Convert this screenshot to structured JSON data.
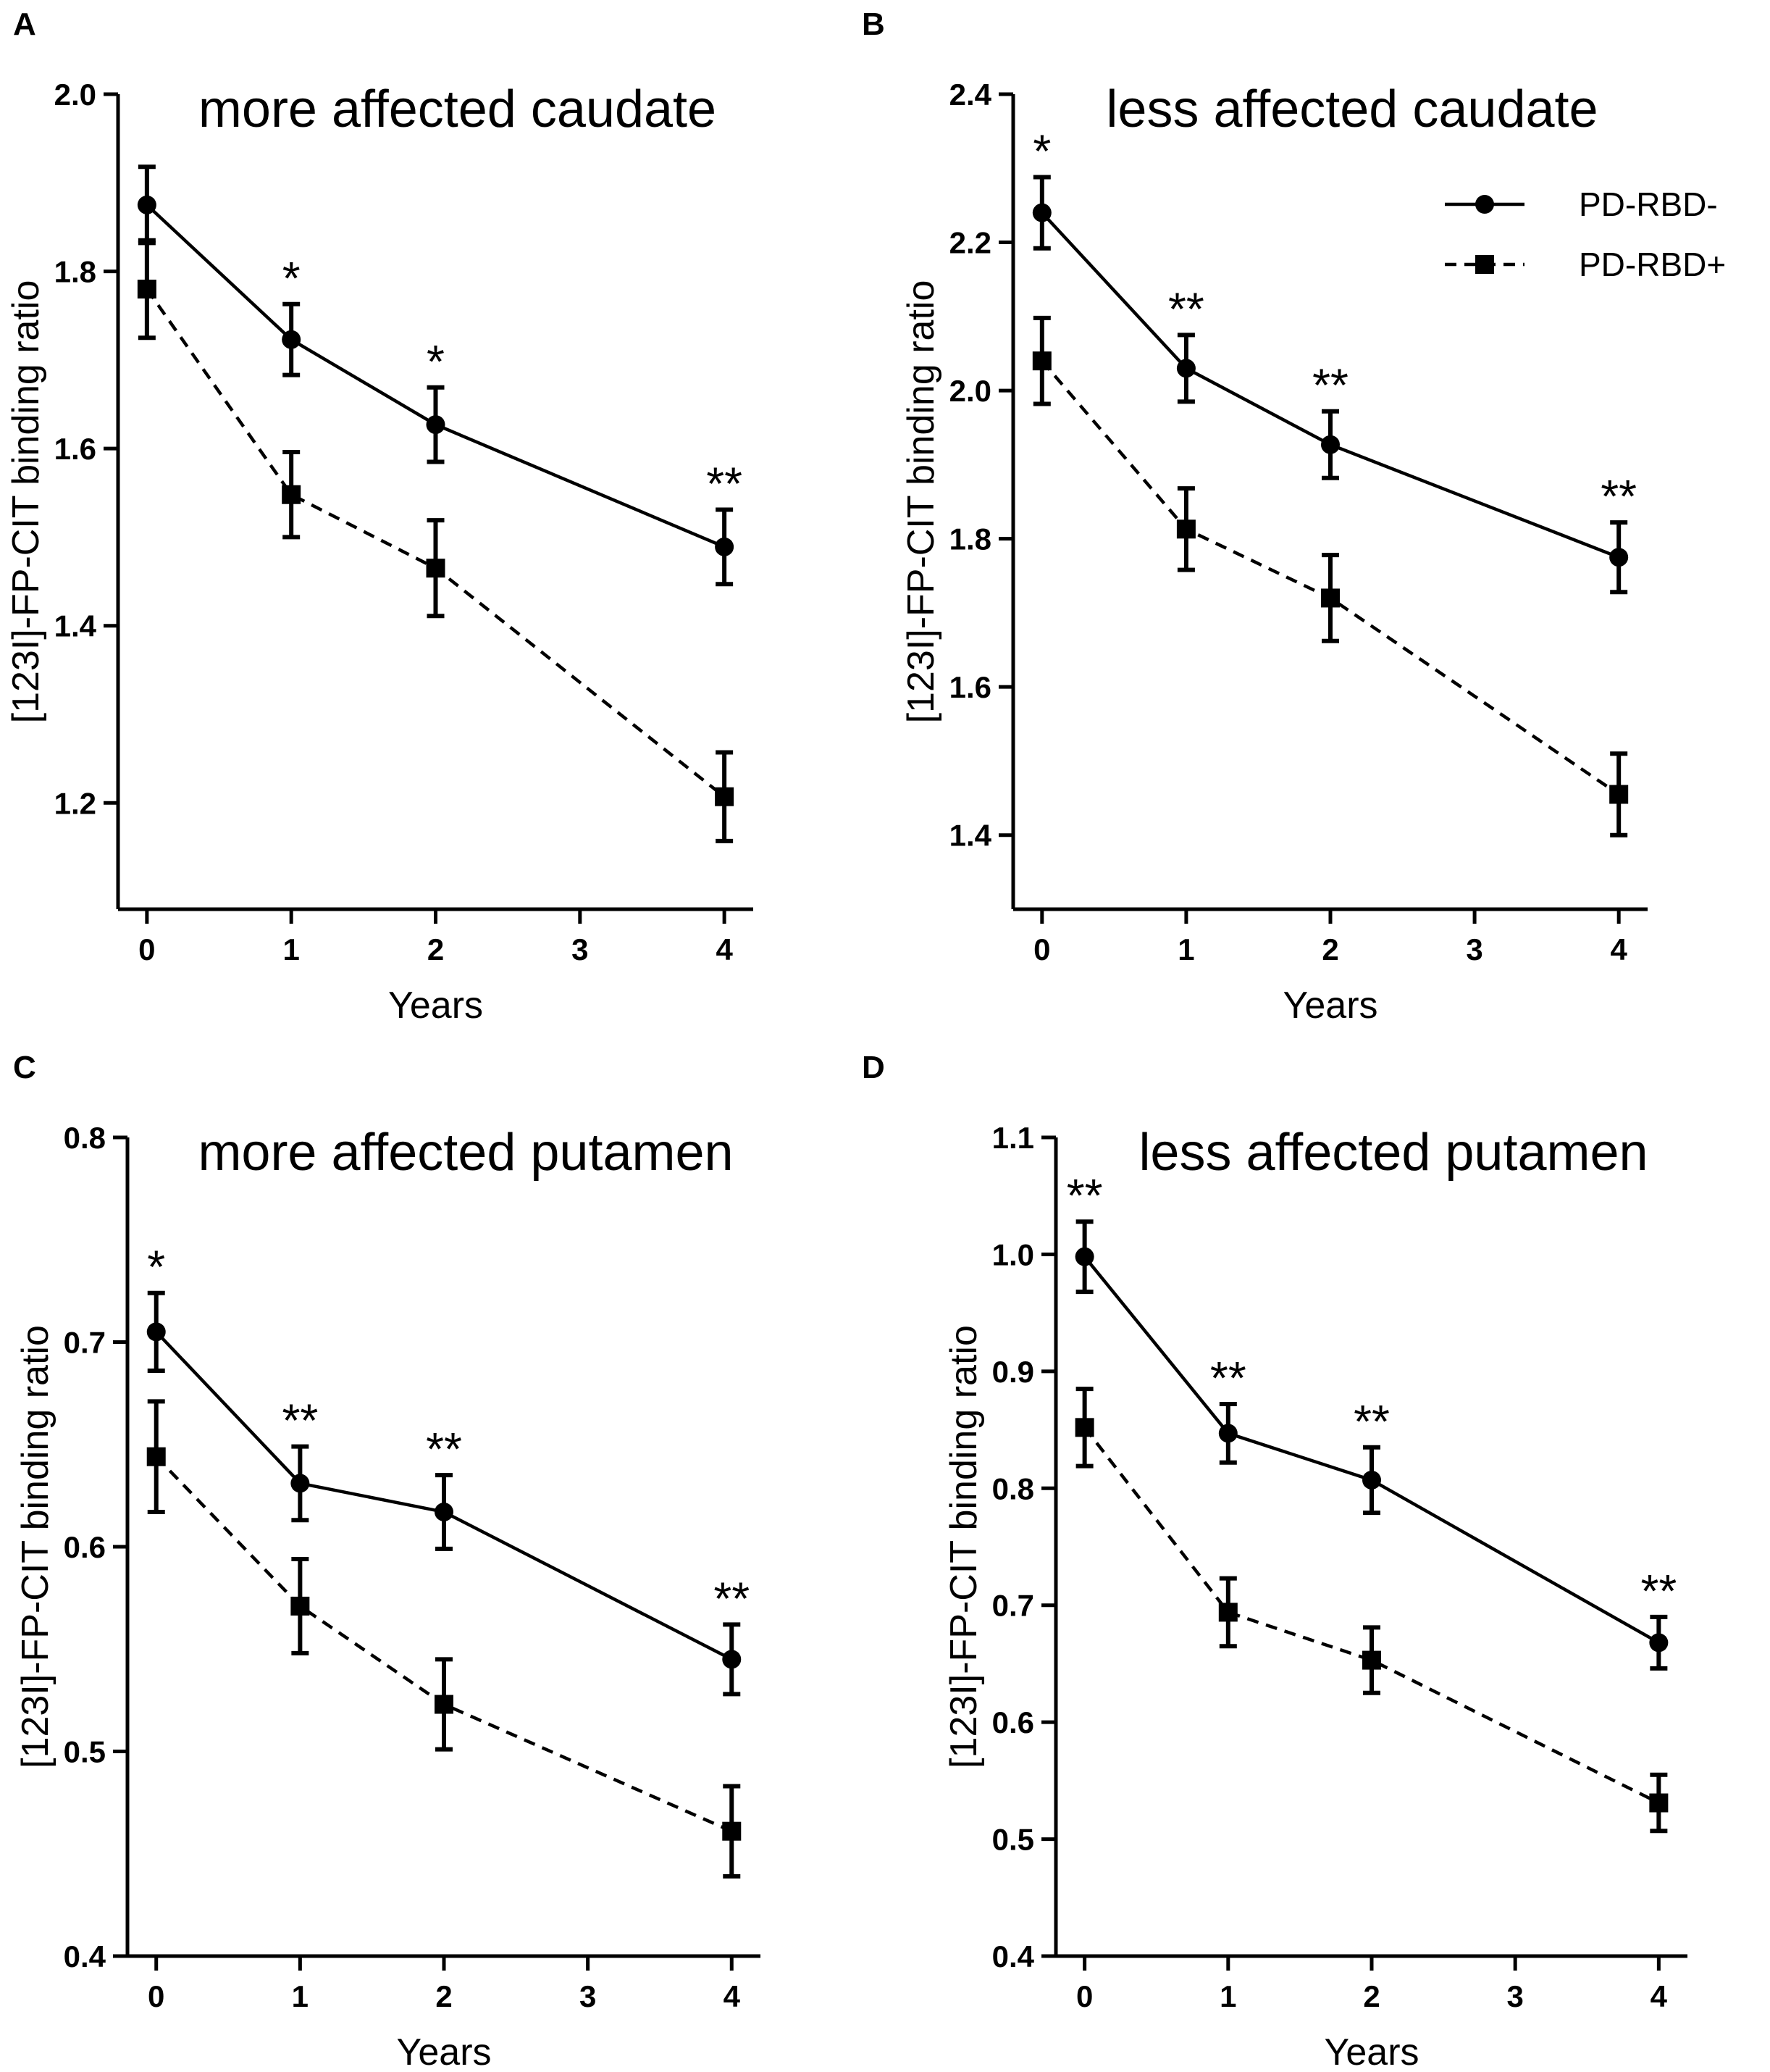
{
  "legend": {
    "series": [
      {
        "name": "PD-RBD-",
        "marker": "circle",
        "line": "solid"
      },
      {
        "name": "PD-RBD+",
        "marker": "square",
        "line": "dashed"
      }
    ]
  },
  "chart_data": [
    {
      "panel": "A",
      "type": "line",
      "title": "more affected caudate",
      "xlabel": "Years",
      "ylabel": "[123I]-FP-CIT binding ratio",
      "x": [
        0,
        1,
        2,
        4
      ],
      "xticks": [
        "0",
        "1",
        "2",
        "3",
        "4"
      ],
      "xlim": [
        -0.2,
        4.2
      ],
      "ylim": [
        1.08,
        2.0
      ],
      "yticks": [
        "1.2",
        "1.4",
        "1.6",
        "1.8",
        "2.0"
      ],
      "ytick_values": [
        1.2,
        1.4,
        1.6,
        1.8,
        2.0
      ],
      "significance": [
        "",
        "*",
        "*",
        "**"
      ],
      "series": [
        {
          "name": "PD-RBD-",
          "values": [
            1.875,
            1.723,
            1.627,
            1.489
          ],
          "errors": [
            0.043,
            0.04,
            0.042,
            0.042
          ]
        },
        {
          "name": "PD-RBD+",
          "values": [
            1.78,
            1.548,
            1.465,
            1.207
          ],
          "errors": [
            0.055,
            0.048,
            0.054,
            0.05
          ]
        }
      ]
    },
    {
      "panel": "B",
      "type": "line",
      "title": "less affected caudate",
      "xlabel": "Years",
      "ylabel": "[123I]-FP-CIT binding ratio",
      "x": [
        0,
        1,
        2,
        4
      ],
      "xticks": [
        "0",
        "1",
        "2",
        "3",
        "4"
      ],
      "xlim": [
        -0.2,
        4.2
      ],
      "ylim": [
        1.3,
        2.4
      ],
      "yticks": [
        "1.4",
        "1.6",
        "1.8",
        "2.0",
        "2.2",
        "2.4"
      ],
      "ytick_values": [
        1.4,
        1.6,
        1.8,
        2.0,
        2.2,
        2.4
      ],
      "significance": [
        "*",
        "**",
        "**",
        "**"
      ],
      "series": [
        {
          "name": "PD-RBD-",
          "values": [
            2.24,
            2.03,
            1.927,
            1.775
          ],
          "errors": [
            0.048,
            0.045,
            0.045,
            0.047
          ]
        },
        {
          "name": "PD-RBD+",
          "values": [
            2.04,
            1.813,
            1.72,
            1.455
          ],
          "errors": [
            0.058,
            0.055,
            0.058,
            0.055
          ]
        }
      ]
    },
    {
      "panel": "C",
      "type": "line",
      "title": "more affected putamen",
      "xlabel": "Years",
      "ylabel": "[123I]-FP-CIT binding ratio",
      "x": [
        0,
        1,
        2,
        4
      ],
      "xticks": [
        "0",
        "1",
        "2",
        "3",
        "4"
      ],
      "xlim": [
        -0.2,
        4.2
      ],
      "ylim": [
        0.4,
        0.8
      ],
      "yticks": [
        "0.4",
        "0.5",
        "0.6",
        "0.7",
        "0.8"
      ],
      "ytick_values": [
        0.4,
        0.5,
        0.6,
        0.7,
        0.8
      ],
      "significance": [
        "*",
        "**",
        "**",
        "**"
      ],
      "series": [
        {
          "name": "PD-RBD-",
          "values": [
            0.705,
            0.631,
            0.617,
            0.545
          ],
          "errors": [
            0.019,
            0.018,
            0.018,
            0.017
          ]
        },
        {
          "name": "PD-RBD+",
          "values": [
            0.644,
            0.571,
            0.523,
            0.461
          ],
          "errors": [
            0.027,
            0.023,
            0.022,
            0.022
          ]
        }
      ]
    },
    {
      "panel": "D",
      "type": "line",
      "title": "less affected putamen",
      "xlabel": "Years",
      "ylabel": "[123I]-FP-CIT binding ratio",
      "x": [
        0,
        1,
        2,
        4
      ],
      "xticks": [
        "0",
        "1",
        "2",
        "3",
        "4"
      ],
      "xlim": [
        -0.2,
        4.2
      ],
      "ylim": [
        0.4,
        1.1
      ],
      "yticks": [
        "0.4",
        "0.5",
        "0.6",
        "0.7",
        "0.8",
        "0.9",
        "1.0",
        "1.1"
      ],
      "ytick_values": [
        0.4,
        0.5,
        0.6,
        0.7,
        0.8,
        0.9,
        1.0,
        1.1
      ],
      "significance": [
        "**",
        "**",
        "**",
        "**"
      ],
      "series": [
        {
          "name": "PD-RBD-",
          "values": [
            0.998,
            0.847,
            0.807,
            0.668
          ],
          "errors": [
            0.03,
            0.025,
            0.028,
            0.022
          ]
        },
        {
          "name": "PD-RBD+",
          "values": [
            0.852,
            0.694,
            0.653,
            0.531
          ],
          "errors": [
            0.033,
            0.029,
            0.028,
            0.024
          ]
        }
      ]
    }
  ]
}
